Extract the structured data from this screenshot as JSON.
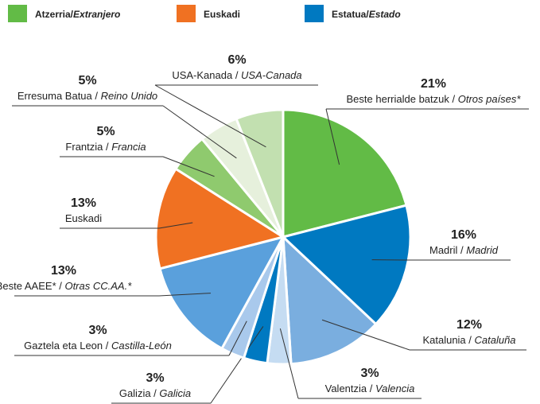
{
  "legend": [
    {
      "label": [
        "Atzerria/",
        "Extranjero"
      ],
      "color": "#62bb46"
    },
    {
      "label": [
        "Euskadi"
      ],
      "color": "#f07122"
    },
    {
      "label": [
        "Estatua/",
        "Estado"
      ],
      "color": "#0079c1"
    }
  ],
  "chart_data": {
    "type": "pie",
    "categories": [
      [
        "Beste herrialde batzuk / ",
        "Otros países*"
      ],
      [
        "Madril / ",
        "Madrid"
      ],
      [
        "Katalunia / ",
        "Cataluña"
      ],
      [
        "Valentzia / ",
        "Valencia"
      ],
      [
        "Galizia / ",
        "Galicia"
      ],
      [
        "Gaztela eta Leon / ",
        "Castilla-León"
      ],
      [
        "Beste AAEE* / ",
        "Otras CC.AA.*"
      ],
      [
        "Euskadi"
      ],
      [
        "Frantzia / ",
        "Francia"
      ],
      [
        "Erresuma Batua / ",
        "Reino Unido"
      ],
      [
        "USA-Kanada / ",
        "USA-Canada"
      ]
    ],
    "values": [
      21,
      16,
      12,
      3,
      3,
      3,
      13,
      13,
      5,
      5,
      6
    ],
    "value_labels": [
      "21%",
      "16%",
      "12%",
      "3%",
      "3%",
      "3%",
      "13%",
      "13%",
      "5%",
      "5%",
      "6%"
    ],
    "colors": [
      "#62bb46",
      "#0079c1",
      "#7aaedf",
      "#c5dcf2",
      "#0079c1",
      "#a9c9ec",
      "#5aa0dc",
      "#f07122",
      "#8fca6e",
      "#e6f0dc",
      "#c2e0b0"
    ]
  }
}
